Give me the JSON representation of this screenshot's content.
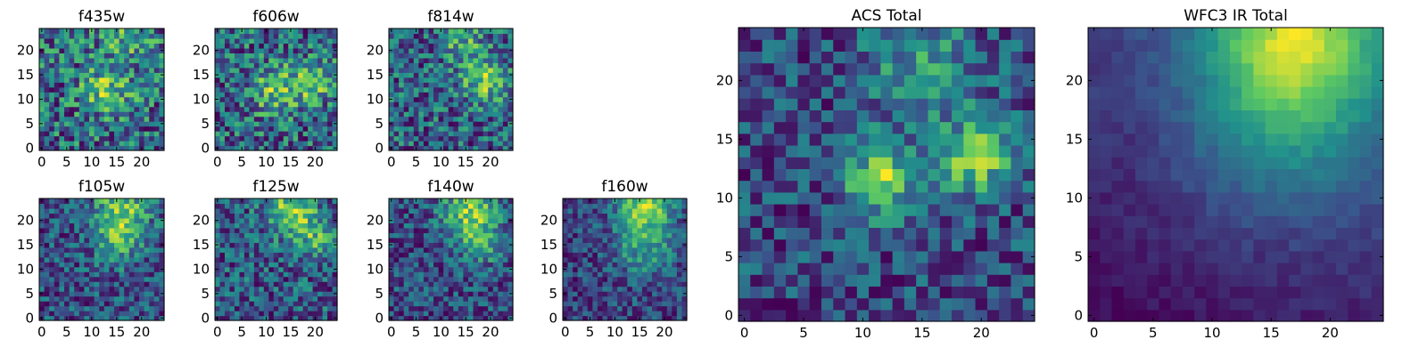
{
  "figure": {
    "colormap": "viridis",
    "colors": [
      "#440154",
      "#3b528b",
      "#21918c",
      "#5ec962",
      "#fde725"
    ]
  },
  "chart_data": [
    {
      "type": "heatmap",
      "title": "f435w",
      "grid": [
        25,
        25
      ],
      "seed": 11,
      "noise": 0.65,
      "xticks": [
        "0",
        "5",
        "10",
        "15",
        "20"
      ],
      "xtick_values": [
        0,
        5,
        10,
        15,
        20
      ],
      "yticks": [
        "0",
        "5",
        "10",
        "15",
        "20"
      ],
      "ytick_values": [
        0,
        5,
        10,
        15,
        20
      ],
      "blobs": [
        [
          13,
          12,
          3.5,
          0.35
        ],
        [
          17,
          22,
          4,
          0.2
        ]
      ]
    },
    {
      "type": "heatmap",
      "title": "f606w",
      "grid": [
        25,
        25
      ],
      "seed": 23,
      "noise": 0.6,
      "xticks": [
        "0",
        "5",
        "10",
        "15",
        "20"
      ],
      "xtick_values": [
        0,
        5,
        10,
        15,
        20
      ],
      "yticks": [
        "0",
        "5",
        "10",
        "15",
        "20"
      ],
      "ytick_values": [
        0,
        5,
        10,
        15,
        20
      ],
      "blobs": [
        [
          12,
          12,
          3.5,
          0.35
        ],
        [
          20,
          14,
          3,
          0.35
        ]
      ]
    },
    {
      "type": "heatmap",
      "title": "f814w",
      "grid": [
        25,
        25
      ],
      "seed": 37,
      "noise": 0.6,
      "xticks": [
        "0",
        "5",
        "10",
        "15",
        "20"
      ],
      "xtick_values": [
        0,
        5,
        10,
        15,
        20
      ],
      "yticks": [
        "0",
        "5",
        "10",
        "15",
        "20"
      ],
      "ytick_values": [
        0,
        5,
        10,
        15,
        20
      ],
      "blobs": [
        [
          19,
          14,
          3.5,
          0.4
        ],
        [
          14,
          22,
          3,
          0.3
        ]
      ]
    },
    {
      "type": "heatmap",
      "title": "f105w",
      "grid": [
        25,
        25
      ],
      "seed": 41,
      "noise": 0.45,
      "xticks": [
        "0",
        "5",
        "10",
        "15",
        "20"
      ],
      "xtick_values": [
        0,
        5,
        10,
        15,
        20
      ],
      "yticks": [
        "0",
        "5",
        "10",
        "15",
        "20"
      ],
      "ytick_values": [
        0,
        5,
        10,
        15,
        20
      ],
      "blobs": [
        [
          16,
          22,
          4,
          0.45
        ],
        [
          15,
          15,
          3,
          0.3
        ]
      ]
    },
    {
      "type": "heatmap",
      "title": "f125w",
      "grid": [
        25,
        25
      ],
      "seed": 53,
      "noise": 0.45,
      "xticks": [
        "0",
        "5",
        "10",
        "15",
        "20"
      ],
      "xtick_values": [
        0,
        5,
        10,
        15,
        20
      ],
      "yticks": [
        "0",
        "5",
        "10",
        "15",
        "20"
      ],
      "ytick_values": [
        0,
        5,
        10,
        15,
        20
      ],
      "blobs": [
        [
          15,
          22,
          3.5,
          0.45
        ],
        [
          21,
          16,
          3,
          0.3
        ]
      ]
    },
    {
      "type": "heatmap",
      "title": "f140w",
      "grid": [
        25,
        25
      ],
      "seed": 67,
      "noise": 0.45,
      "xticks": [
        "0",
        "5",
        "10",
        "15",
        "20"
      ],
      "xtick_values": [
        0,
        5,
        10,
        15,
        20
      ],
      "yticks": [
        "0",
        "5",
        "10",
        "15",
        "20"
      ],
      "ytick_values": [
        0,
        5,
        10,
        15,
        20
      ],
      "blobs": [
        [
          16,
          22,
          4,
          0.5
        ],
        [
          18,
          15,
          3,
          0.3
        ]
      ]
    },
    {
      "type": "heatmap",
      "title": "f160w",
      "grid": [
        25,
        25
      ],
      "seed": 79,
      "noise": 0.4,
      "xticks": [
        "0",
        "5",
        "10",
        "15",
        "20"
      ],
      "xtick_values": [
        0,
        5,
        10,
        15,
        20
      ],
      "yticks": [
        "0",
        "5",
        "10",
        "15",
        "20"
      ],
      "ytick_values": [
        0,
        5,
        10,
        15,
        20
      ],
      "blobs": [
        [
          16,
          23,
          4,
          0.55
        ],
        [
          16,
          14,
          4,
          0.3
        ]
      ]
    },
    {
      "type": "heatmap",
      "title": "ACS Total",
      "grid": [
        25,
        25
      ],
      "seed": 97,
      "noise": 0.45,
      "xticks": [
        "0",
        "5",
        "10",
        "15",
        "20"
      ],
      "xtick_values": [
        0,
        5,
        10,
        15,
        20
      ],
      "yticks": [
        "0",
        "5",
        "10",
        "15",
        "20"
      ],
      "ytick_values": [
        0,
        5,
        10,
        15,
        20
      ],
      "blobs": [
        [
          11.5,
          11.5,
          2,
          0.6
        ],
        [
          19.5,
          13.5,
          2,
          0.6
        ],
        [
          15,
          21,
          3.5,
          0.3
        ]
      ]
    },
    {
      "type": "heatmap",
      "title": "WFC3 IR Total",
      "grid": [
        25,
        25
      ],
      "seed": 113,
      "noise": 0.15,
      "xticks": [
        "0",
        "5",
        "10",
        "15",
        "20"
      ],
      "xtick_values": [
        0,
        5,
        10,
        15,
        20
      ],
      "yticks": [
        "0",
        "5",
        "10",
        "15",
        "20"
      ],
      "ytick_values": [
        0,
        5,
        10,
        15,
        20
      ],
      "blobs": [
        [
          17,
          24,
          5,
          0.9
        ],
        [
          16,
          16,
          6,
          0.4
        ]
      ]
    }
  ]
}
